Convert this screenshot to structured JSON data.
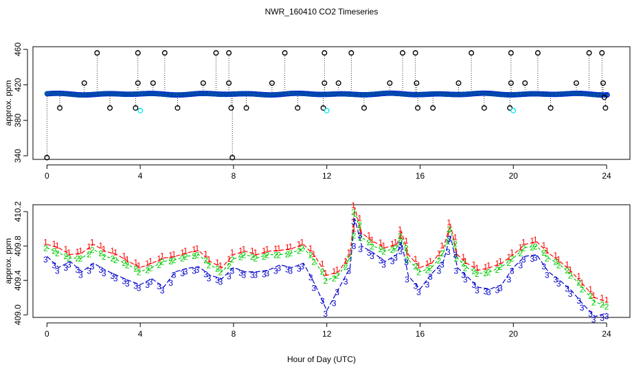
{
  "chart_data": {
    "title": "NWR_160410  CO2 Timeseries",
    "xlabel": "Hour of Day (UTC)",
    "panels": [
      {
        "id": "top",
        "type": "scatter",
        "ylabel": "approx. ppm",
        "xlim": [
          -0.6,
          25
        ],
        "ylim": [
          336,
          463
        ],
        "xticks": [
          0,
          4,
          8,
          12,
          16,
          20,
          24
        ],
        "yticks": [
          340,
          380,
          420,
          460
        ],
        "baseline_ppm": 409.6,
        "baseline_color": "#0000ff",
        "fill_color": "#00dd00",
        "outlier_color": "#000000",
        "low_point_color": "#00e5ee",
        "outliers": [
          {
            "x": 0.0,
            "y": 338
          },
          {
            "x": 0.55,
            "y": 394
          },
          {
            "x": 1.6,
            "y": 422
          },
          {
            "x": 2.15,
            "y": 456
          },
          {
            "x": 2.7,
            "y": 394
          },
          {
            "x": 3.8,
            "y": 394
          },
          {
            "x": 3.9,
            "y": 422
          },
          {
            "x": 3.9,
            "y": 456
          },
          {
            "x": 4.55,
            "y": 422
          },
          {
            "x": 5.05,
            "y": 456
          },
          {
            "x": 5.6,
            "y": 394
          },
          {
            "x": 6.7,
            "y": 422
          },
          {
            "x": 7.25,
            "y": 456
          },
          {
            "x": 7.8,
            "y": 456
          },
          {
            "x": 7.8,
            "y": 422
          },
          {
            "x": 7.9,
            "y": 394
          },
          {
            "x": 7.95,
            "y": 338
          },
          {
            "x": 8.55,
            "y": 394
          },
          {
            "x": 9.65,
            "y": 422
          },
          {
            "x": 10.2,
            "y": 456
          },
          {
            "x": 10.75,
            "y": 394
          },
          {
            "x": 11.85,
            "y": 394
          },
          {
            "x": 11.9,
            "y": 422
          },
          {
            "x": 11.9,
            "y": 456
          },
          {
            "x": 12.5,
            "y": 422
          },
          {
            "x": 13.05,
            "y": 456
          },
          {
            "x": 13.6,
            "y": 394
          },
          {
            "x": 14.7,
            "y": 422
          },
          {
            "x": 15.25,
            "y": 456
          },
          {
            "x": 15.8,
            "y": 456
          },
          {
            "x": 15.85,
            "y": 422
          },
          {
            "x": 15.9,
            "y": 394
          },
          {
            "x": 16.55,
            "y": 394
          },
          {
            "x": 17.65,
            "y": 422
          },
          {
            "x": 18.2,
            "y": 456
          },
          {
            "x": 18.75,
            "y": 394
          },
          {
            "x": 19.85,
            "y": 394
          },
          {
            "x": 19.9,
            "y": 422
          },
          {
            "x": 19.9,
            "y": 456
          },
          {
            "x": 20.5,
            "y": 422
          },
          {
            "x": 21.05,
            "y": 456
          },
          {
            "x": 21.6,
            "y": 394
          },
          {
            "x": 22.7,
            "y": 422
          },
          {
            "x": 23.25,
            "y": 456
          },
          {
            "x": 23.8,
            "y": 456
          },
          {
            "x": 23.85,
            "y": 422
          },
          {
            "x": 23.9,
            "y": 406
          },
          {
            "x": 23.95,
            "y": 394
          }
        ],
        "low_points": [
          {
            "x": 4.0,
            "y": 391
          },
          {
            "x": 12.0,
            "y": 391
          },
          {
            "x": 20.0,
            "y": 391
          }
        ]
      },
      {
        "id": "bottom",
        "type": "line",
        "ylabel": "approx. ppm",
        "xlim": [
          -0.6,
          25
        ],
        "ylim": [
          408.97,
          410.28
        ],
        "xticks": [
          0,
          4,
          8,
          12,
          16,
          20,
          24
        ],
        "yticks": [
          409.0,
          409.4,
          409.8,
          410.2
        ],
        "series": [
          {
            "name": "1",
            "color": "#ff0000",
            "label": "1",
            "x": [
              0,
              0.5,
              1,
              1.5,
              2,
              2.5,
              3,
              3.5,
              4,
              4.5,
              5,
              5.5,
              6,
              6.5,
              7,
              7.5,
              8,
              8.5,
              9,
              9.5,
              10,
              10.5,
              11,
              11.5,
              12,
              12.5,
              13,
              13.2,
              13.5,
              14,
              14.5,
              15,
              15.2,
              15.5,
              16,
              16.5,
              17,
              17.3,
              17.6,
              18,
              18.5,
              19,
              19.5,
              20,
              20.5,
              21,
              21.5,
              22,
              22.5,
              23,
              23.5,
              24
            ],
            "y": [
              409.82,
              409.78,
              409.7,
              409.72,
              409.82,
              409.74,
              409.7,
              409.62,
              409.55,
              409.6,
              409.66,
              409.68,
              409.72,
              409.75,
              409.62,
              409.55,
              409.7,
              409.74,
              409.7,
              409.74,
              409.75,
              409.77,
              409.82,
              409.68,
              409.46,
              409.5,
              409.7,
              410.25,
              409.95,
              409.85,
              409.78,
              409.82,
              409.97,
              409.7,
              409.55,
              409.6,
              409.78,
              410.05,
              409.7,
              409.6,
              409.52,
              409.55,
              409.6,
              409.7,
              409.82,
              409.85,
              409.72,
              409.62,
              409.5,
              409.35,
              409.2,
              409.15
            ]
          },
          {
            "name": "2",
            "color": "#00cc00",
            "label": "2",
            "x": [
              0,
              0.5,
              1,
              1.5,
              2,
              2.5,
              3,
              3.5,
              4,
              4.5,
              5,
              5.5,
              6,
              6.5,
              7,
              7.5,
              8,
              8.5,
              9,
              9.5,
              10,
              10.5,
              11,
              11.5,
              12,
              12.5,
              13,
              13.2,
              13.5,
              14,
              14.5,
              15,
              15.2,
              15.5,
              16,
              16.5,
              17,
              17.3,
              17.6,
              18,
              18.5,
              19,
              19.5,
              20,
              20.5,
              21,
              21.5,
              22,
              22.5,
              23,
              23.5,
              24
            ],
            "y": [
              409.78,
              409.72,
              409.66,
              409.66,
              409.76,
              409.68,
              409.64,
              409.58,
              409.5,
              409.55,
              409.62,
              409.64,
              409.68,
              409.7,
              409.58,
              409.5,
              409.65,
              409.7,
              409.66,
              409.7,
              409.7,
              409.72,
              409.78,
              409.62,
              409.4,
              409.46,
              409.66,
              410.2,
              409.9,
              409.8,
              409.74,
              409.78,
              409.92,
              409.64,
              409.5,
              409.55,
              409.72,
              410.0,
              409.66,
              409.55,
              409.48,
              409.5,
              409.56,
              409.66,
              409.78,
              409.8,
              409.66,
              409.58,
              409.46,
              409.3,
              409.15,
              409.1
            ]
          },
          {
            "name": "3",
            "color": "#0000cc",
            "label": "3",
            "x": [
              0,
              0.5,
              1,
              1.5,
              2,
              2.5,
              3,
              3.5,
              4,
              4.5,
              5,
              5.5,
              6,
              6.5,
              7,
              7.5,
              8,
              8.5,
              9,
              9.5,
              10,
              10.5,
              11,
              11.5,
              12,
              12.5,
              13,
              13.2,
              13.5,
              14,
              14.5,
              15,
              15.2,
              15.5,
              16,
              16.5,
              17,
              17.3,
              17.6,
              18,
              18.5,
              19,
              19.5,
              20,
              20.5,
              21,
              21.5,
              22,
              22.5,
              23,
              23.5,
              24
            ],
            "y": [
              409.68,
              409.55,
              409.62,
              409.5,
              409.6,
              409.52,
              409.46,
              409.4,
              409.35,
              409.42,
              409.32,
              409.5,
              409.54,
              409.56,
              409.46,
              409.42,
              409.55,
              409.5,
              409.5,
              409.52,
              409.58,
              409.55,
              409.6,
              409.35,
              409.05,
              409.3,
              409.55,
              410.12,
              409.8,
              409.72,
              409.62,
              409.7,
              409.85,
              409.45,
              409.3,
              409.48,
              409.62,
              409.92,
              409.55,
              409.45,
              409.32,
              409.3,
              409.35,
              409.55,
              409.68,
              409.7,
              409.5,
              409.4,
              409.28,
              409.12,
              408.98,
              409.02
            ]
          }
        ]
      }
    ]
  }
}
